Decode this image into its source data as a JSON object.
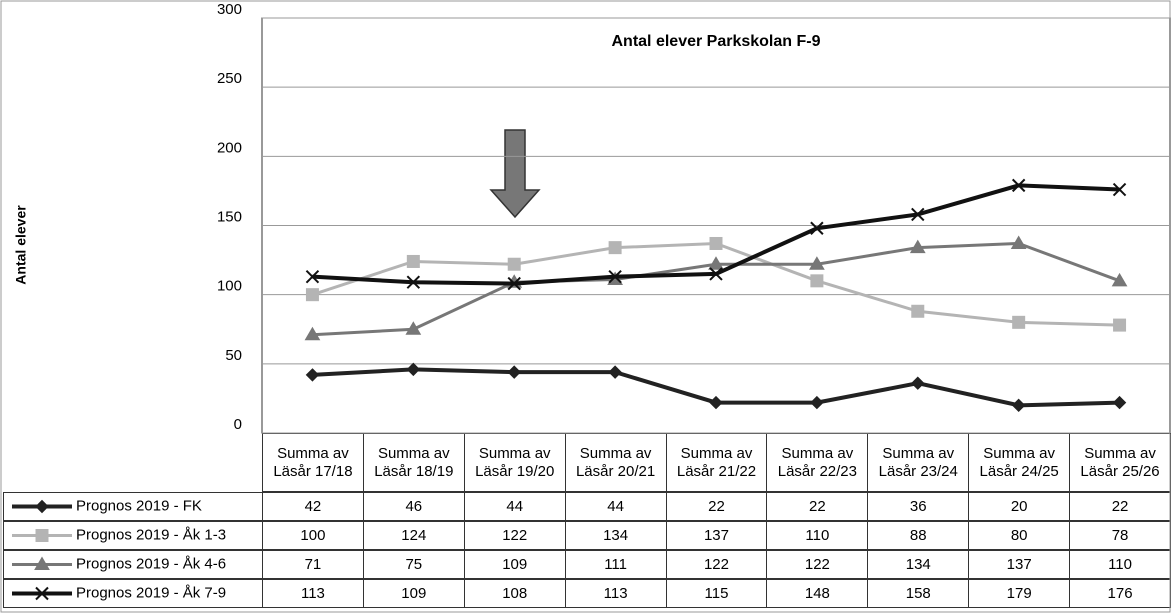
{
  "chart_data": {
    "type": "line",
    "title": "Antal elever Parkskolan F-9",
    "y_label": "Antal elever",
    "categories": [
      "Summa av\nLäsår 17/18",
      "Summa av\nLäsår 18/19",
      "Summa av\nLäsår 19/20",
      "Summa av\nLäsår 20/21",
      "Summa av\nLäsår 21/22",
      "Summa av\nLäsår 22/23",
      "Summa av\nLäsår 23/24",
      "Summa av\nLäsår 24/25",
      "Summa av\nLäsår 25/26"
    ],
    "series": [
      {
        "name": "Prognos 2019 - FK",
        "color": "#222222",
        "marker": "diamond",
        "values": [
          42,
          46,
          44,
          44,
          22,
          22,
          36,
          20,
          22
        ]
      },
      {
        "name": "Prognos 2019 - Åk 1-3",
        "color": "#b4b4b4",
        "marker": "square",
        "values": [
          100,
          124,
          122,
          134,
          137,
          110,
          88,
          80,
          78
        ]
      },
      {
        "name": "Prognos 2019 - Åk 4-6",
        "color": "#777777",
        "marker": "triangle",
        "values": [
          71,
          75,
          109,
          111,
          122,
          122,
          134,
          137,
          110
        ]
      },
      {
        "name": "Prognos 2019 - Åk 7-9",
        "color": "#111111",
        "marker": "x",
        "values": [
          113,
          109,
          108,
          113,
          115,
          148,
          158,
          179,
          176
        ]
      }
    ],
    "ylim": [
      0,
      300
    ],
    "yticks": [
      0,
      50,
      100,
      150,
      200,
      250,
      300
    ],
    "grid": true
  }
}
